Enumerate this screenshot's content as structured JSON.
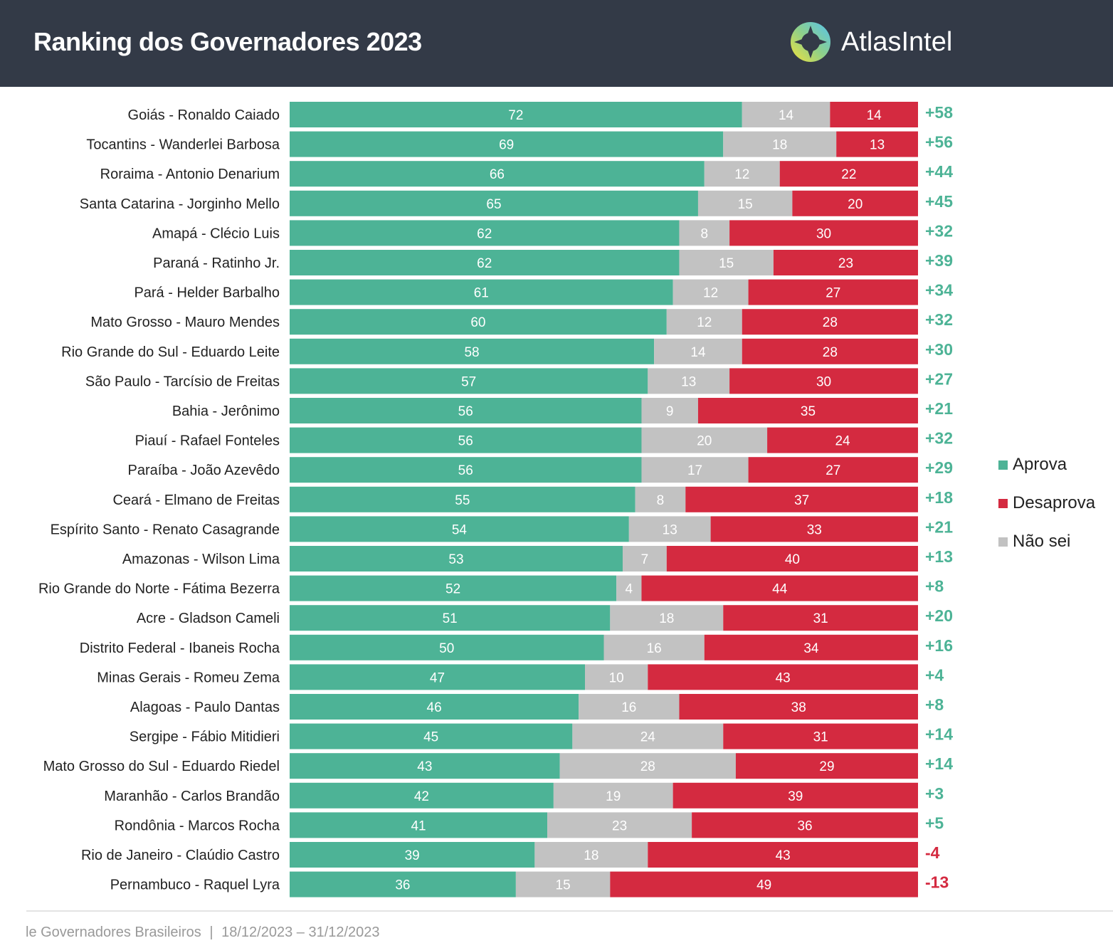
{
  "header": {
    "title": "Ranking dos Governadores 2023",
    "brand": "AtlasIntel"
  },
  "footer": {
    "source": "le Governadores Brasileiros",
    "separator": "|",
    "dates": "18/12/2023 – 31/12/2023"
  },
  "colors": {
    "aprova": "#4db396",
    "desaprova": "#d42a40",
    "nao_sei": "#c2c2c2",
    "header_bg": "#333a47"
  },
  "chart_data": {
    "type": "bar",
    "orientation": "horizontal-stacked",
    "title": "Ranking dos Governadores 2023",
    "legend": [
      "Aprova",
      "Desaprova",
      "Não sei"
    ],
    "legend_position": "right",
    "categories": [
      "Goiás - Ronaldo Caiado",
      "Tocantins - Wanderlei Barbosa",
      "Roraima - Antonio Denarium",
      "Santa Catarina - Jorginho Mello",
      "Amapá - Clécio Luis",
      "Paraná - Ratinho Jr.",
      "Pará - Helder Barbalho",
      "Mato Grosso - Mauro Mendes",
      "Rio Grande do Sul - Eduardo Leite",
      "São Paulo - Tarcísio de Freitas",
      "Bahia - Jerônimo",
      "Piauí - Rafael Fonteles",
      "Paraíba - João Azevêdo",
      "Ceará - Elmano de Freitas",
      "Espírito Santo - Renato Casagrande",
      "Amazonas - Wilson Lima",
      "Rio Grande do Norte - Fátima Bezerra",
      "Acre - Gladson Cameli",
      "Distrito Federal - Ibaneis Rocha",
      "Minas Gerais - Romeu Zema",
      "Alagoas - Paulo Dantas",
      "Sergipe - Fábio Mitidieri",
      "Mato Grosso do Sul - Eduardo Riedel",
      "Maranhão - Carlos Brandão",
      "Rondônia - Marcos Rocha",
      "Rio de Janeiro - Claúdio Castro",
      "Pernambuco - Raquel Lyra"
    ],
    "series": [
      {
        "name": "Aprova",
        "values": [
          72,
          69,
          66,
          65,
          62,
          62,
          61,
          60,
          58,
          57,
          56,
          56,
          56,
          55,
          54,
          53,
          52,
          51,
          50,
          47,
          46,
          45,
          43,
          42,
          41,
          39,
          36
        ]
      },
      {
        "name": "Não sei",
        "values": [
          14,
          18,
          12,
          15,
          8,
          15,
          12,
          12,
          14,
          13,
          9,
          20,
          17,
          8,
          13,
          7,
          4,
          18,
          16,
          10,
          16,
          24,
          28,
          19,
          23,
          18,
          15
        ]
      },
      {
        "name": "Desaprova",
        "values": [
          14,
          13,
          22,
          20,
          30,
          23,
          27,
          28,
          28,
          30,
          35,
          24,
          27,
          37,
          33,
          40,
          44,
          31,
          34,
          43,
          38,
          31,
          29,
          39,
          36,
          43,
          49
        ]
      }
    ],
    "net": [
      "+58",
      "+56",
      "+44",
      "+45",
      "+32",
      "+39",
      "+34",
      "+32",
      "+30",
      "+27",
      "+21",
      "+32",
      "+29",
      "+18",
      "+21",
      "+13",
      "+8",
      "+20",
      "+16",
      "+4",
      "+8",
      "+14",
      "+14",
      "+3",
      "+5",
      "-4",
      "-13"
    ],
    "xlim": [
      0,
      100
    ]
  }
}
